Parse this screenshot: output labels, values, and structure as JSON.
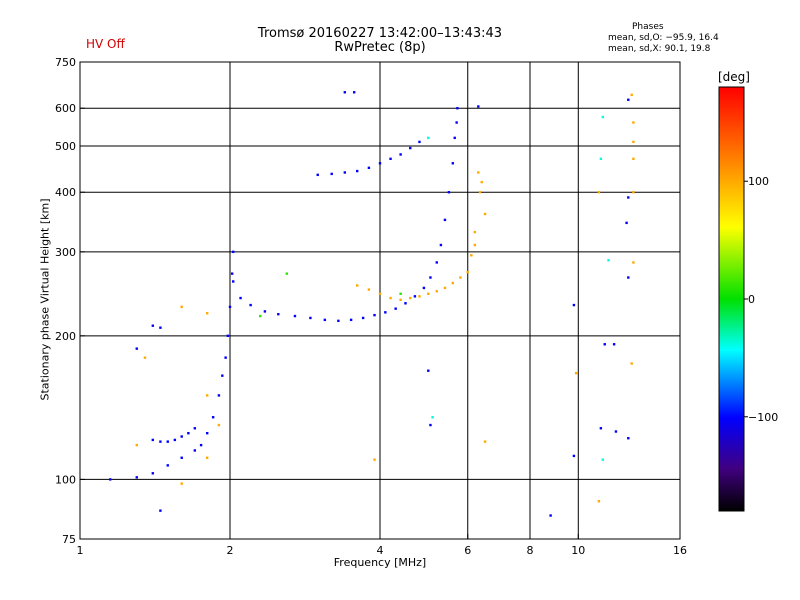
{
  "header": {
    "title_line1": "Tromsø 20160227 13:42:00–13:43:43",
    "title_line2": "RwPretec (8p)",
    "hv_status": "HV Off",
    "hv_color": "#d40000"
  },
  "phases_box": {
    "title": "Phases",
    "line_o": "mean, sd,O: −95.9, 16.4",
    "line_x": "mean, sd,X:  90.1, 19.8"
  },
  "colorbar": {
    "unit": "[deg]",
    "ticks": [
      {
        "value": 100,
        "label": "100"
      },
      {
        "value": 0,
        "label": "0"
      },
      {
        "value": -100,
        "label": "−100"
      }
    ],
    "range": [
      -180,
      180
    ]
  },
  "chart_data": {
    "type": "scatter",
    "title": "Tromsø 20160227 13:42:00–13:43:43",
    "subtitle": "RwPretec (8p)",
    "xlabel": "Frequency [MHz]",
    "ylabel": "Stationary phase Virtual Height [km]",
    "x_scale": "log",
    "y_scale": "log",
    "xlim": [
      1,
      16
    ],
    "ylim": [
      75,
      750
    ],
    "x_ticks": [
      {
        "value": 1,
        "label": "1"
      },
      {
        "value": 2,
        "label": "2"
      },
      {
        "value": 4,
        "label": "4"
      },
      {
        "value": 6,
        "label": "6"
      },
      {
        "value": 8,
        "label": "8"
      },
      {
        "value": 10,
        "label": "10"
      },
      {
        "value": 16,
        "label": "16"
      }
    ],
    "y_ticks": [
      {
        "value": 75,
        "label": "75"
      },
      {
        "value": 100,
        "label": "100"
      },
      {
        "value": 200,
        "label": "200"
      },
      {
        "value": 300,
        "label": "300"
      },
      {
        "value": 400,
        "label": "400"
      },
      {
        "value": 500,
        "label": "500"
      },
      {
        "value": 600,
        "label": "600"
      },
      {
        "value": 750,
        "label": "750"
      }
    ],
    "grid_x": [
      2,
      4,
      6,
      8,
      10
    ],
    "grid_y": [
      100,
      200,
      300,
      400,
      500,
      600
    ],
    "grid": true,
    "color_dimension": "phase [deg]",
    "trace_O_lower": {
      "phase": -100,
      "points": [
        [
          1.15,
          100
        ],
        [
          1.3,
          101
        ],
        [
          1.4,
          103
        ],
        [
          1.5,
          107
        ],
        [
          1.6,
          111
        ],
        [
          1.7,
          115
        ],
        [
          1.75,
          118
        ],
        [
          1.8,
          125
        ],
        [
          1.85,
          135
        ],
        [
          1.9,
          150
        ],
        [
          1.93,
          165
        ],
        [
          1.96,
          180
        ],
        [
          1.98,
          200
        ],
        [
          2.0,
          230
        ],
        [
          2.02,
          270
        ],
        [
          2.03,
          300
        ]
      ]
    },
    "trace_O_low_e": {
      "phase": -100,
      "points": [
        [
          1.4,
          121
        ],
        [
          1.45,
          120
        ],
        [
          1.5,
          120
        ],
        [
          1.55,
          121
        ],
        [
          1.6,
          123
        ],
        [
          1.65,
          125
        ],
        [
          1.7,
          128
        ]
      ]
    },
    "trace_O_F": {
      "phase": -100,
      "points": [
        [
          2.03,
          260
        ],
        [
          2.1,
          240
        ],
        [
          2.2,
          232
        ],
        [
          2.35,
          225
        ],
        [
          2.5,
          222
        ],
        [
          2.7,
          220
        ],
        [
          2.9,
          218
        ],
        [
          3.1,
          216
        ],
        [
          3.3,
          215
        ],
        [
          3.5,
          216
        ],
        [
          3.7,
          218
        ],
        [
          3.9,
          221
        ],
        [
          4.1,
          224
        ],
        [
          4.3,
          228
        ],
        [
          4.5,
          234
        ],
        [
          4.7,
          242
        ],
        [
          4.9,
          252
        ],
        [
          5.05,
          265
        ],
        [
          5.2,
          285
        ],
        [
          5.3,
          310
        ],
        [
          5.4,
          350
        ],
        [
          5.5,
          400
        ],
        [
          5.6,
          460
        ],
        [
          5.65,
          520
        ],
        [
          5.7,
          560
        ],
        [
          5.72,
          600
        ]
      ]
    },
    "trace_X_F": {
      "phase": 100,
      "points": [
        [
          3.6,
          255
        ],
        [
          3.8,
          250
        ],
        [
          4.0,
          245
        ],
        [
          4.2,
          240
        ],
        [
          4.4,
          238
        ],
        [
          4.6,
          240
        ],
        [
          4.8,
          242
        ],
        [
          5.0,
          245
        ],
        [
          5.2,
          248
        ],
        [
          5.4,
          252
        ],
        [
          5.6,
          258
        ],
        [
          5.8,
          265
        ],
        [
          6.0,
          272
        ]
      ]
    },
    "trace_upper_echo": {
      "phase": -100,
      "points": [
        [
          3.0,
          435
        ],
        [
          3.2,
          437
        ],
        [
          3.4,
          440
        ],
        [
          3.6,
          443
        ],
        [
          3.8,
          450
        ],
        [
          4.0,
          460
        ],
        [
          4.2,
          470
        ],
        [
          4.4,
          480
        ],
        [
          4.6,
          495
        ],
        [
          4.8,
          510
        ]
      ]
    },
    "scatter_O": {
      "phase": -100,
      "points": [
        [
          3.4,
          648
        ],
        [
          3.55,
          648
        ],
        [
          6.3,
          605
        ],
        [
          1.4,
          210
        ],
        [
          1.45,
          208
        ],
        [
          1.3,
          188
        ],
        [
          1.45,
          86
        ],
        [
          5.0,
          169
        ],
        [
          5.05,
          130
        ],
        [
          11.1,
          128
        ],
        [
          11.9,
          126
        ],
        [
          12.6,
          122
        ],
        [
          12.5,
          345
        ],
        [
          12.6,
          390
        ],
        [
          12.6,
          265
        ],
        [
          9.8,
          232
        ],
        [
          9.8,
          112
        ],
        [
          11.3,
          192
        ],
        [
          11.8,
          192
        ],
        [
          8.8,
          84
        ],
        [
          12.6,
          625
        ]
      ]
    },
    "scatter_X": {
      "phase": 100,
      "points": [
        [
          6.3,
          440
        ],
        [
          6.4,
          420
        ],
        [
          6.35,
          400
        ],
        [
          6.5,
          360
        ],
        [
          6.2,
          330
        ],
        [
          6.2,
          310
        ],
        [
          6.1,
          295
        ],
        [
          1.6,
          230
        ],
        [
          1.8,
          223
        ],
        [
          1.35,
          180
        ],
        [
          1.8,
          150
        ],
        [
          1.9,
          130
        ],
        [
          1.3,
          118
        ],
        [
          1.6,
          98
        ],
        [
          1.8,
          111
        ],
        [
          3.9,
          110
        ],
        [
          6.5,
          120
        ],
        [
          11.0,
          90
        ],
        [
          11.0,
          400
        ],
        [
          12.8,
          640
        ],
        [
          12.9,
          560
        ],
        [
          12.9,
          510
        ],
        [
          12.9,
          470
        ],
        [
          12.9,
          400
        ],
        [
          12.9,
          285
        ],
        [
          12.8,
          175
        ],
        [
          9.9,
          167
        ]
      ]
    },
    "scatter_Z": {
      "phase": 10,
      "points": [
        [
          2.6,
          270
        ],
        [
          2.3,
          220
        ],
        [
          4.4,
          245
        ]
      ]
    },
    "scatter_cyan": {
      "phase": -40,
      "points": [
        [
          5.0,
          520
        ],
        [
          5.1,
          135
        ],
        [
          11.1,
          470
        ],
        [
          11.5,
          288
        ],
        [
          11.2,
          110
        ],
        [
          11.2,
          575
        ]
      ]
    }
  }
}
